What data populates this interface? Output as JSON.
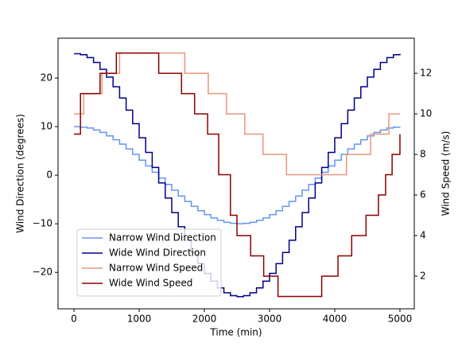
{
  "chart_data": {
    "type": "step",
    "xlabel": "Time (min)",
    "ylabel": "Wind Direction (degrees)",
    "y2label": "Wind Speed (m/s)",
    "xlim": [
      -244,
      5220
    ],
    "xticks": [
      0,
      1000,
      2000,
      3000,
      4000,
      5000
    ],
    "ylim": [
      -27.5,
      28.2
    ],
    "yticks": [
      {
        "value": -20,
        "label": "−20"
      },
      {
        "value": -10,
        "label": "−10"
      },
      0,
      10,
      20
    ],
    "y2lim": [
      0.39,
      13.73
    ],
    "y2ticks": [
      2,
      4,
      6,
      8,
      10,
      12
    ],
    "legend": "lower left",
    "series": [
      {
        "name": "Narrow Wind Direction",
        "color": "#6495ed",
        "x": [
          0,
          100,
          200,
          300,
          400,
          500,
          600,
          700,
          800,
          900,
          1000,
          1100,
          1200,
          1300,
          1400,
          1500,
          1600,
          1700,
          1800,
          1900,
          2000,
          2100,
          2200,
          2300,
          2400,
          2500,
          2600,
          2700,
          2800,
          2900,
          3000,
          3100,
          3200,
          3300,
          3400,
          3500,
          3600,
          3700,
          3800,
          3900,
          4000,
          4100,
          4200,
          4300,
          4400,
          4500,
          4600,
          4700,
          4800,
          4900,
          5000
        ],
        "values": [
          10,
          9.9,
          9.7,
          9.3,
          8.8,
          8.1,
          7.3,
          6.4,
          5.4,
          4.3,
          3.1,
          1.9,
          0.6,
          -0.6,
          -1.9,
          -3.1,
          -4.3,
          -5.4,
          -6.4,
          -7.3,
          -8.1,
          -8.8,
          -9.3,
          -9.7,
          -9.9,
          -10,
          -9.9,
          -9.7,
          -9.3,
          -8.8,
          -8.1,
          -7.3,
          -6.4,
          -5.4,
          -4.3,
          -3.1,
          -1.9,
          -0.6,
          0.6,
          1.9,
          3.1,
          4.3,
          5.4,
          6.4,
          7.3,
          8.1,
          8.8,
          9.3,
          9.7,
          9.9,
          10
        ]
      },
      {
        "name": "Wide Wind Direction",
        "color": "#00008b",
        "x": [
          0,
          100,
          200,
          300,
          400,
          500,
          600,
          700,
          800,
          900,
          1000,
          1100,
          1200,
          1300,
          1400,
          1500,
          1600,
          1700,
          1800,
          1900,
          2000,
          2100,
          2200,
          2300,
          2400,
          2500,
          2600,
          2700,
          2800,
          2900,
          3000,
          3100,
          3200,
          3300,
          3400,
          3500,
          3600,
          3700,
          3800,
          3900,
          4000,
          4100,
          4200,
          4300,
          4400,
          4500,
          4600,
          4700,
          4800,
          4900,
          5000
        ],
        "values": [
          25,
          24.8,
          24.2,
          23.2,
          21.8,
          20.2,
          18.2,
          15.9,
          13.4,
          10.6,
          7.7,
          4.7,
          1.6,
          -1.6,
          -4.7,
          -7.7,
          -10.6,
          -13.4,
          -15.9,
          -18.2,
          -20.2,
          -21.8,
          -23.2,
          -24.2,
          -24.8,
          -25,
          -24.8,
          -24.2,
          -23.2,
          -21.8,
          -20.2,
          -18.2,
          -15.9,
          -13.4,
          -10.6,
          -7.7,
          -4.7,
          -1.6,
          1.6,
          4.7,
          7.7,
          10.6,
          13.4,
          15.9,
          18.2,
          20.2,
          21.8,
          23.2,
          24.2,
          24.8,
          25
        ]
      },
      {
        "name": "Narrow Wind Speed",
        "color": "#e9967a",
        "axis": "y2",
        "x": [
          0,
          150,
          430,
          700,
          1700,
          2060,
          2340,
          2620,
          2900,
          3260,
          4180,
          4550,
          4830,
          5000
        ],
        "values": [
          10,
          11,
          12,
          13,
          12,
          11,
          10,
          9,
          8,
          7,
          8,
          9,
          10,
          10
        ]
      },
      {
        "name": "Wide Wind Speed",
        "color": "#8b0000",
        "axis": "y2",
        "x": [
          0,
          100,
          400,
          650,
          1300,
          1650,
          1850,
          2050,
          2220,
          2400,
          2500,
          2710,
          2910,
          3130,
          3800,
          4050,
          4260,
          4480,
          4670,
          4780,
          4880,
          5000
        ],
        "values": [
          9,
          11,
          12,
          13,
          12,
          11,
          10,
          9,
          7,
          5,
          4,
          3,
          2,
          1,
          2,
          3,
          4,
          5,
          6,
          7,
          8,
          9
        ]
      }
    ]
  }
}
